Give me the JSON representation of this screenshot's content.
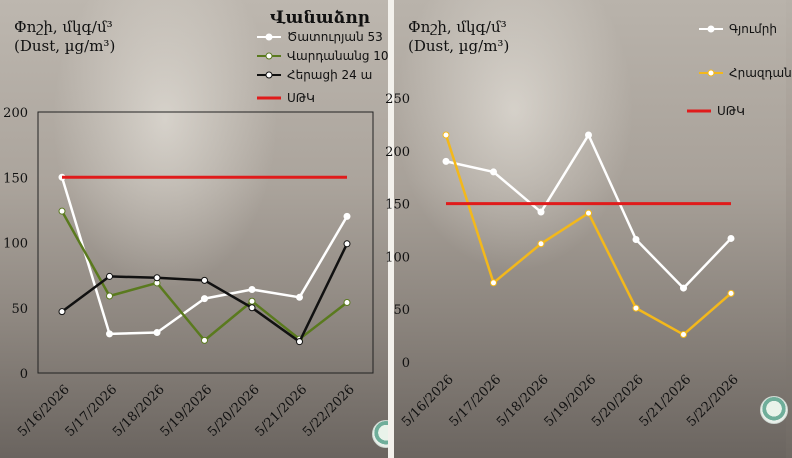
{
  "chart_data": [
    {
      "type": "line",
      "title": "Վանաձոր",
      "ylabel_am": "Փոշի, մկգ/մ³",
      "ylabel_en": "(Dust, µg/m³)",
      "ylim": [
        0,
        200
      ],
      "yticks": [
        "0",
        "50",
        "100",
        "150",
        "200"
      ],
      "categories": [
        "5/16/2026",
        "5/17/2026",
        "5/18/2026",
        "5/19/2026",
        "5/20/2026",
        "5/21/2026",
        "5/22/2026"
      ],
      "series": [
        {
          "name": "Ծատուրյան 53",
          "color": "#ffffff",
          "values": [
            150,
            30,
            31,
            57,
            64,
            58,
            120
          ]
        },
        {
          "name": "Վարդանանց 10",
          "color": "#5a7a1e",
          "values": [
            124,
            59,
            69,
            25,
            55,
            26,
            54
          ]
        },
        {
          "name": "Հերացի 24 ա",
          "color": "#111111",
          "values": [
            47,
            74,
            73,
            71,
            50,
            24,
            99
          ]
        },
        {
          "name": "ՍԹԿ",
          "color": "#e01b1b",
          "values": [
            150,
            150,
            150,
            150,
            150,
            150,
            150
          ]
        }
      ],
      "grid": false,
      "legend_position": "top-right"
    },
    {
      "type": "line",
      "title": "",
      "ylabel_am": "Փոշի, մկգ/մ³",
      "ylabel_en": "(Dust, µg/m³)",
      "ylim": [
        0,
        250
      ],
      "yticks": [
        "0",
        "50",
        "100",
        "150",
        "200",
        "250"
      ],
      "categories": [
        "5/16/2026",
        "5/17/2026",
        "5/18/2026",
        "5/19/2026",
        "5/20/2026",
        "5/21/2026",
        "5/22/2026"
      ],
      "series": [
        {
          "name": "Գյումրի",
          "color": "#ffffff",
          "values": [
            190,
            180,
            142,
            215,
            116,
            70,
            117
          ]
        },
        {
          "name": "Հրազդան",
          "color": "#f3b81b",
          "values": [
            215,
            75,
            112,
            141,
            51,
            26,
            65
          ]
        },
        {
          "name": "ՍԹԿ",
          "color": "#e01b1b",
          "values": [
            150,
            150,
            150,
            150,
            150,
            150,
            150
          ]
        }
      ],
      "grid": false,
      "legend_position": "top-right"
    }
  ]
}
